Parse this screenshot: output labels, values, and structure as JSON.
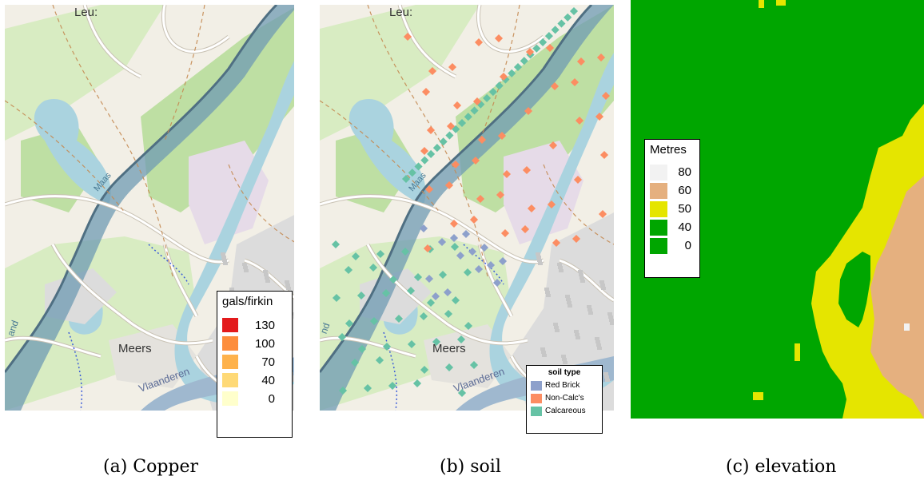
{
  "panels": {
    "copper": {
      "place_labels": [
        "Leu:",
        "Meers",
        "Maas",
        "Vlaanderen",
        "and"
      ],
      "legend": {
        "title": "gals/firkin",
        "items": [
          {
            "label": "130",
            "color": "#e31a1c"
          },
          {
            "label": "100",
            "color": "#fd8d3c"
          },
          {
            "label": "70",
            "color": "#feb24c"
          },
          {
            "label": "40",
            "color": "#fed976"
          },
          {
            "label": "0",
            "color": "#ffffcc"
          }
        ]
      },
      "caption": "(a) Copper"
    },
    "soil": {
      "place_labels": [
        "Leu:",
        "Meers",
        "Maas",
        "Vlaanderen",
        "nd"
      ],
      "legend": {
        "title": "soil type",
        "items": [
          {
            "label": "Red Brick",
            "color": "#8da0cb"
          },
          {
            "label": "Non-Calc's",
            "color": "#fc8d62"
          },
          {
            "label": "Calcareous",
            "color": "#66c2a5"
          }
        ]
      },
      "caption": "(b) soil"
    },
    "elevation": {
      "legend": {
        "title": "Metres",
        "items": [
          {
            "label": "80",
            "color": "#f2f2f2"
          },
          {
            "label": "60",
            "color": "#e5b07f"
          },
          {
            "label": "50",
            "color": "#e5e500"
          },
          {
            "label": "40",
            "color": "#00a600"
          },
          {
            "label": "0",
            "color": "#00a600"
          }
        ]
      },
      "caption": "(c) elevation"
    }
  },
  "colors": {
    "land": "#f2efe6",
    "park": "#d8ecc2",
    "green": "#bedfa3",
    "water": "#aad3df",
    "river": "#6f9bb3",
    "road": "#ffffff",
    "urban": "#dcdcdc",
    "industrial": "#e6dbe8"
  }
}
